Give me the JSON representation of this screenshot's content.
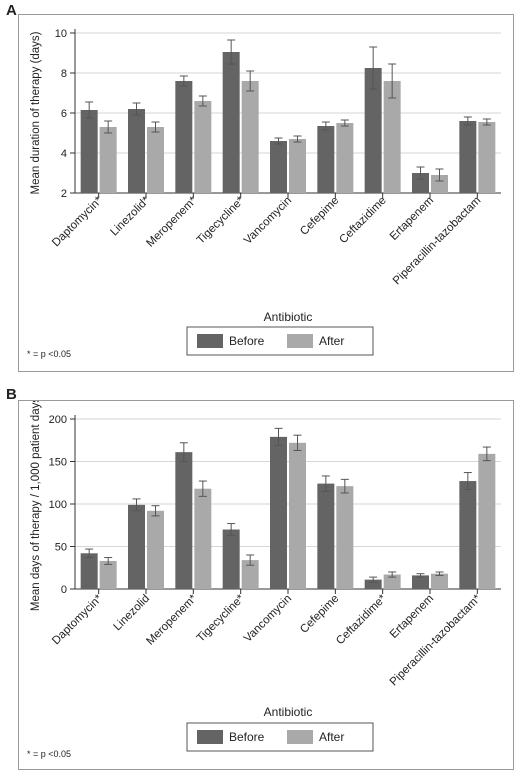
{
  "panels": [
    {
      "letter": "A",
      "footnote": "* = p <0.05"
    },
    {
      "letter": "B",
      "footnote": "* = p <0.05"
    }
  ],
  "colors": {
    "before": "#646464",
    "after": "#a9a9a9",
    "grid": "#d6d6d6"
  },
  "chart_data": [
    {
      "type": "bar",
      "panel": "A",
      "ylabel": "Mean duration of therapy (days)",
      "xlabel": "Antibiotic",
      "ylim": [
        2,
        10
      ],
      "yticks": [
        2,
        4,
        6,
        8,
        10
      ],
      "grid": true,
      "legend_position": "bottom",
      "categories": [
        "Daptomycin*",
        "Linezolid*",
        "Meropenem*",
        "Tigecycline*",
        "Vancomycin",
        "Cefepime",
        "Ceftazidime",
        "Ertapenem",
        "Piperacillin-tazobactam"
      ],
      "series": [
        {
          "name": "Before",
          "values": [
            6.15,
            6.2,
            7.6,
            9.05,
            4.6,
            5.35,
            8.25,
            3.0,
            5.6
          ],
          "error": [
            0.4,
            0.3,
            0.25,
            0.6,
            0.15,
            0.2,
            1.05,
            0.3,
            0.2
          ]
        },
        {
          "name": "After",
          "values": [
            5.3,
            5.3,
            6.6,
            7.6,
            4.7,
            5.5,
            7.6,
            2.9,
            5.55
          ],
          "error": [
            0.3,
            0.25,
            0.25,
            0.5,
            0.15,
            0.15,
            0.85,
            0.3,
            0.15
          ]
        }
      ]
    },
    {
      "type": "bar",
      "panel": "B",
      "ylabel": "Mean days of therapy / 1,000 patient days",
      "xlabel": "Antibiotic",
      "ylim": [
        0,
        200
      ],
      "yticks": [
        0,
        50,
        100,
        150,
        200
      ],
      "grid": true,
      "legend_position": "bottom",
      "categories": [
        "Daptomycin*",
        "Linezolid",
        "Meropenem*",
        "Tigecycline*",
        "Vancomycin",
        "Cefepime",
        "Ceftazidime*",
        "Ertapenem",
        "Piperacillin-tazobactam*"
      ],
      "series": [
        {
          "name": "Before",
          "values": [
            42,
            99,
            161,
            70,
            179,
            124,
            11,
            16,
            127
          ],
          "error": [
            5,
            7,
            11,
            7,
            10,
            9,
            3,
            2,
            10
          ]
        },
        {
          "name": "After",
          "values": [
            33,
            92,
            118,
            34,
            172,
            121,
            17,
            18,
            159
          ],
          "error": [
            4,
            6,
            9,
            6,
            9,
            8,
            3,
            2,
            8
          ]
        }
      ]
    }
  ]
}
